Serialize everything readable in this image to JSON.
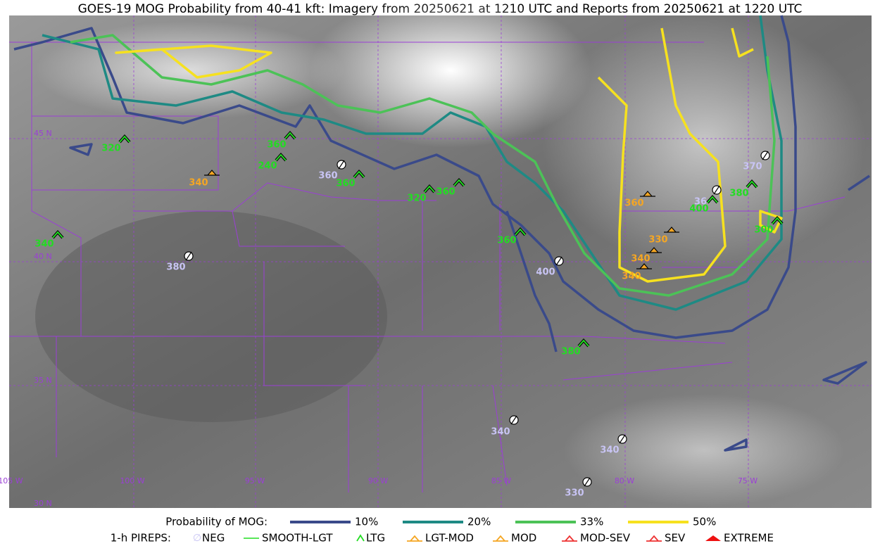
{
  "title": "GOES-19 MOG Probability from 40-41 kft: Imagery from 20250621 at 1210 UTC and Reports from 20250621 at 1220 UTC",
  "map": {
    "lat_labels": [
      "45 N",
      "40 N",
      "35 N",
      "30 N"
    ],
    "lon_labels": [
      "105 W",
      "100 W",
      "95 W",
      "90 W",
      "85 W",
      "80 W",
      "75 W"
    ]
  },
  "reports": [
    {
      "level": "320",
      "kind": "LTG"
    },
    {
      "level": "340",
      "kind": "LGT-MOD"
    },
    {
      "level": "360",
      "kind": "LTG"
    },
    {
      "level": "240",
      "kind": "LTG"
    },
    {
      "level": "360",
      "kind": "NEG"
    },
    {
      "level": "360",
      "kind": "LTG"
    },
    {
      "level": "320",
      "kind": "LTG"
    },
    {
      "level": "360",
      "kind": "LTG"
    },
    {
      "level": "340",
      "kind": "LTG"
    },
    {
      "level": "380",
      "kind": "NEG"
    },
    {
      "level": "360",
      "kind": "LTG"
    },
    {
      "level": "400",
      "kind": "NEG"
    },
    {
      "level": "360",
      "kind": "LGT-MOD"
    },
    {
      "level": "330",
      "kind": "LGT-MOD"
    },
    {
      "level": "340",
      "kind": "LGT-MOD"
    },
    {
      "level": "340",
      "kind": "LGT-MOD"
    },
    {
      "level": "370",
      "kind": "NEG"
    },
    {
      "level": "36",
      "kind": "NEG"
    },
    {
      "level": "400",
      "kind": "LTG"
    },
    {
      "level": "380",
      "kind": "LTG"
    },
    {
      "level": "300",
      "kind": "LTG"
    },
    {
      "level": "380",
      "kind": "LTG"
    },
    {
      "level": "340",
      "kind": "NEG"
    },
    {
      "level": "340",
      "kind": "NEG"
    },
    {
      "level": "330",
      "kind": "NEG"
    }
  ],
  "legend": {
    "mog_title": "Probability of MOG:",
    "mog": [
      {
        "label": "10%",
        "color": "#3a4a8a"
      },
      {
        "label": "20%",
        "color": "#1e8a84"
      },
      {
        "label": "33%",
        "color": "#4cc257"
      },
      {
        "label": "50%",
        "color": "#f6e11f"
      }
    ],
    "pirep_title": "1-h PIREPS:",
    "pireps": [
      {
        "label": "NEG",
        "color": "#c8c4f4"
      },
      {
        "label": "SMOOTH-LGT",
        "color": "#22dd22"
      },
      {
        "label": "LTG",
        "color": "#22dd22"
      },
      {
        "label": "LGT-MOD",
        "color": "#f5a623"
      },
      {
        "label": "MOD",
        "color": "#f5a623"
      },
      {
        "label": "MOD-SEV",
        "color": "#ee3333"
      },
      {
        "label": "SEV",
        "color": "#ee3333"
      },
      {
        "label": "EXTREME",
        "color": "#ee1111"
      }
    ]
  }
}
